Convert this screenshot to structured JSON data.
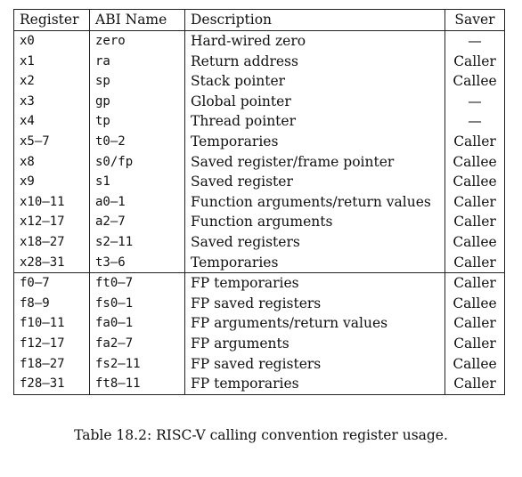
{
  "table": {
    "headers": [
      "Register",
      "ABI Name",
      "Description",
      "Saver"
    ],
    "int_rows": [
      {
        "register": "x0",
        "abi": "zero",
        "description": "Hard-wired zero",
        "saver": "—"
      },
      {
        "register": "x1",
        "abi": "ra",
        "description": "Return address",
        "saver": "Caller"
      },
      {
        "register": "x2",
        "abi": "sp",
        "description": "Stack pointer",
        "saver": "Callee"
      },
      {
        "register": "x3",
        "abi": "gp",
        "description": "Global pointer",
        "saver": "—"
      },
      {
        "register": "x4",
        "abi": "tp",
        "description": "Thread pointer",
        "saver": "—"
      },
      {
        "register": "x5–7",
        "abi": "t0–2",
        "description": "Temporaries",
        "saver": "Caller"
      },
      {
        "register": "x8",
        "abi": "s0/fp",
        "description": "Saved register/frame pointer",
        "saver": "Callee"
      },
      {
        "register": "x9",
        "abi": "s1",
        "description": "Saved register",
        "saver": "Callee"
      },
      {
        "register": "x10–11",
        "abi": "a0–1",
        "description": "Function arguments/return values",
        "saver": "Caller"
      },
      {
        "register": "x12–17",
        "abi": "a2–7",
        "description": "Function arguments",
        "saver": "Caller"
      },
      {
        "register": "x18–27",
        "abi": "s2–11",
        "description": "Saved registers",
        "saver": "Callee"
      },
      {
        "register": "x28–31",
        "abi": "t3–6",
        "description": "Temporaries",
        "saver": "Caller"
      }
    ],
    "fp_rows": [
      {
        "register": "f0–7",
        "abi": "ft0–7",
        "description": "FP temporaries",
        "saver": "Caller"
      },
      {
        "register": "f8–9",
        "abi": "fs0–1",
        "description": "FP saved registers",
        "saver": "Callee"
      },
      {
        "register": "f10–11",
        "abi": "fa0–1",
        "description": "FP arguments/return values",
        "saver": "Caller"
      },
      {
        "register": "f12–17",
        "abi": "fa2–7",
        "description": "FP arguments",
        "saver": "Caller"
      },
      {
        "register": "f18–27",
        "abi": "fs2–11",
        "description": "FP saved registers",
        "saver": "Callee"
      },
      {
        "register": "f28–31",
        "abi": "ft8–11",
        "description": "FP temporaries",
        "saver": "Caller"
      }
    ]
  },
  "caption": "Table 18.2: RISC-V calling convention register usage."
}
